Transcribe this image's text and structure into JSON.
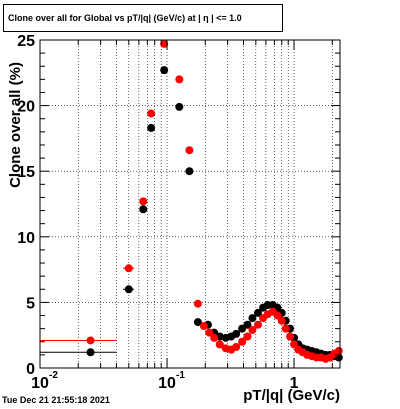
{
  "title": "Clone  over all for Global vs pT/|q| (GeV/c) at | η | <= 1.0",
  "timestamp": "Tue Dec 21 21:55:18 2021",
  "chart_data": {
    "type": "scatter",
    "xlabel": "pT/|q| (GeV/c)",
    "ylabel": "Clone  over all (%)",
    "xscale": "log",
    "xlim": [
      0.01,
      2.3
    ],
    "ylim": [
      0,
      25
    ],
    "grid": true,
    "x_ticks": [
      {
        "value": 0.01,
        "label": "10",
        "exp": "-2"
      },
      {
        "value": 0.1,
        "label": "10",
        "exp": "-1"
      },
      {
        "value": 1,
        "label": "1",
        "exp": ""
      }
    ],
    "y_ticks": [
      0,
      5,
      10,
      15,
      20,
      25
    ],
    "series": [
      {
        "color": "#000000",
        "points": [
          {
            "x": 0.025,
            "y": 1.2,
            "xerr": [
              0.01,
              0.04
            ]
          },
          {
            "x": 0.05,
            "y": 6.0,
            "xerr": [
              0.045,
              0.055
            ]
          },
          {
            "x": 0.065,
            "y": 12.1
          },
          {
            "x": 0.075,
            "y": 18.3
          },
          {
            "x": 0.095,
            "y": 22.7
          },
          {
            "x": 0.125,
            "y": 19.9
          },
          {
            "x": 0.15,
            "y": 15.0
          },
          {
            "x": 0.175,
            "y": 3.5
          },
          {
            "x": 0.21,
            "y": 3.3
          },
          {
            "x": 0.235,
            "y": 2.7
          },
          {
            "x": 0.26,
            "y": 2.4
          },
          {
            "x": 0.29,
            "y": 2.3
          },
          {
            "x": 0.32,
            "y": 2.4
          },
          {
            "x": 0.35,
            "y": 2.6
          },
          {
            "x": 0.39,
            "y": 3.0
          },
          {
            "x": 0.43,
            "y": 3.3
          },
          {
            "x": 0.47,
            "y": 3.8
          },
          {
            "x": 0.52,
            "y": 4.2
          },
          {
            "x": 0.57,
            "y": 4.6
          },
          {
            "x": 0.62,
            "y": 4.8
          },
          {
            "x": 0.68,
            "y": 4.8
          },
          {
            "x": 0.74,
            "y": 4.6
          },
          {
            "x": 0.8,
            "y": 4.2
          },
          {
            "x": 0.86,
            "y": 3.6
          },
          {
            "x": 0.93,
            "y": 3.0
          },
          {
            "x": 1.0,
            "y": 2.3
          },
          {
            "x": 1.08,
            "y": 1.8
          },
          {
            "x": 1.17,
            "y": 1.5
          },
          {
            "x": 1.27,
            "y": 1.4
          },
          {
            "x": 1.38,
            "y": 1.3
          },
          {
            "x": 1.5,
            "y": 1.2
          },
          {
            "x": 1.63,
            "y": 1.1
          },
          {
            "x": 1.77,
            "y": 1.0
          },
          {
            "x": 1.92,
            "y": 1.0
          },
          {
            "x": 2.08,
            "y": 0.9
          },
          {
            "x": 2.25,
            "y": 0.8
          }
        ]
      },
      {
        "color": "#ff0000",
        "points": [
          {
            "x": 0.025,
            "y": 2.1,
            "xerr": [
              0.01,
              0.04
            ]
          },
          {
            "x": 0.05,
            "y": 7.6,
            "xerr": [
              0.045,
              0.055
            ]
          },
          {
            "x": 0.065,
            "y": 12.7
          },
          {
            "x": 0.075,
            "y": 19.4
          },
          {
            "x": 0.095,
            "y": 24.7
          },
          {
            "x": 0.125,
            "y": 22.0
          },
          {
            "x": 0.15,
            "y": 16.6
          },
          {
            "x": 0.175,
            "y": 4.9
          },
          {
            "x": 0.195,
            "y": 3.2
          },
          {
            "x": 0.215,
            "y": 2.7
          },
          {
            "x": 0.235,
            "y": 2.3
          },
          {
            "x": 0.26,
            "y": 1.8
          },
          {
            "x": 0.29,
            "y": 1.5
          },
          {
            "x": 0.32,
            "y": 1.4
          },
          {
            "x": 0.35,
            "y": 1.6
          },
          {
            "x": 0.39,
            "y": 2.0
          },
          {
            "x": 0.43,
            "y": 2.4
          },
          {
            "x": 0.47,
            "y": 2.9
          },
          {
            "x": 0.52,
            "y": 3.3
          },
          {
            "x": 0.57,
            "y": 3.8
          },
          {
            "x": 0.62,
            "y": 4.1
          },
          {
            "x": 0.68,
            "y": 4.3
          },
          {
            "x": 0.74,
            "y": 4.0
          },
          {
            "x": 0.8,
            "y": 3.6
          },
          {
            "x": 0.86,
            "y": 3.0
          },
          {
            "x": 0.93,
            "y": 2.4
          },
          {
            "x": 1.0,
            "y": 1.8
          },
          {
            "x": 1.08,
            "y": 1.4
          },
          {
            "x": 1.17,
            "y": 1.2
          },
          {
            "x": 1.27,
            "y": 1.0
          },
          {
            "x": 1.38,
            "y": 0.9
          },
          {
            "x": 1.5,
            "y": 0.8
          },
          {
            "x": 1.63,
            "y": 0.8
          },
          {
            "x": 1.77,
            "y": 0.7
          },
          {
            "x": 1.92,
            "y": 0.8
          },
          {
            "x": 2.08,
            "y": 1.1
          },
          {
            "x": 2.25,
            "y": 1.3
          }
        ]
      }
    ]
  }
}
